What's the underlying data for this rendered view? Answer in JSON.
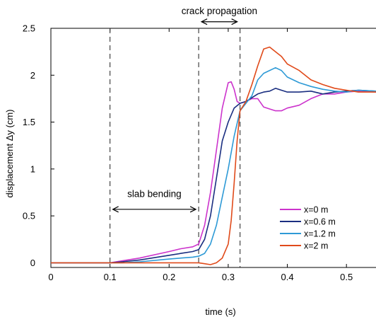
{
  "chart_data": {
    "type": "line",
    "title": "",
    "xlabel": "time (s)",
    "ylabel": "displacement Δy (cm)",
    "xlim": [
      0,
      0.55
    ],
    "ylim": [
      -0.05,
      2.5
    ],
    "xticks": [
      0,
      0.1,
      0.2,
      0.3,
      0.4,
      0.5
    ],
    "yticks": [
      0,
      0.5,
      1,
      1.5,
      2,
      2.5
    ],
    "xtick_labels": [
      "0",
      "0.1",
      "0.2",
      "0.3",
      "0.4",
      "0.5"
    ],
    "ytick_labels": [
      "0",
      "0.5",
      "1",
      "1.5",
      "2",
      "2.5"
    ],
    "grid": false,
    "legend_position": "bottom-right",
    "vertical_dashed_lines_x": [
      0.1,
      0.25,
      0.32
    ],
    "annotations": [
      {
        "text": "slab bending",
        "arrow_from_x": 0.1,
        "arrow_to_x": 0.25,
        "y": 0.57,
        "text_y": 0.7
      },
      {
        "text": "crack propagation",
        "arrow_from_x": 0.25,
        "arrow_to_x": 0.32,
        "y": 2.57,
        "text_y": 2.65
      }
    ],
    "series": [
      {
        "name": "x=0 m",
        "color": "#cc33cc",
        "x": [
          0,
          0.1,
          0.12,
          0.15,
          0.2,
          0.22,
          0.24,
          0.25,
          0.26,
          0.27,
          0.28,
          0.29,
          0.3,
          0.305,
          0.31,
          0.315,
          0.32,
          0.33,
          0.34,
          0.35,
          0.36,
          0.37,
          0.38,
          0.39,
          0.4,
          0.42,
          0.44,
          0.46,
          0.48,
          0.5,
          0.52,
          0.55
        ],
        "values": [
          0,
          0,
          0.02,
          0.05,
          0.12,
          0.15,
          0.17,
          0.2,
          0.4,
          0.75,
          1.2,
          1.65,
          1.92,
          1.93,
          1.85,
          1.72,
          1.7,
          1.72,
          1.75,
          1.75,
          1.66,
          1.64,
          1.62,
          1.62,
          1.65,
          1.68,
          1.75,
          1.8,
          1.8,
          1.82,
          1.83,
          1.82
        ]
      },
      {
        "name": "x=0.6 m",
        "color": "#1a2e80",
        "x": [
          0,
          0.1,
          0.12,
          0.15,
          0.2,
          0.22,
          0.24,
          0.25,
          0.26,
          0.27,
          0.28,
          0.29,
          0.3,
          0.31,
          0.32,
          0.33,
          0.34,
          0.35,
          0.36,
          0.37,
          0.38,
          0.39,
          0.4,
          0.42,
          0.44,
          0.46,
          0.48,
          0.5,
          0.52,
          0.55
        ],
        "values": [
          0,
          0,
          0.01,
          0.03,
          0.08,
          0.1,
          0.12,
          0.14,
          0.25,
          0.5,
          0.9,
          1.3,
          1.5,
          1.65,
          1.7,
          1.72,
          1.76,
          1.8,
          1.82,
          1.83,
          1.86,
          1.84,
          1.82,
          1.82,
          1.83,
          1.8,
          1.82,
          1.83,
          1.84,
          1.83
        ]
      },
      {
        "name": "x=1.2 m",
        "color": "#2e9ad6",
        "x": [
          0,
          0.1,
          0.12,
          0.15,
          0.2,
          0.22,
          0.24,
          0.25,
          0.26,
          0.27,
          0.28,
          0.29,
          0.3,
          0.31,
          0.32,
          0.33,
          0.34,
          0.35,
          0.36,
          0.37,
          0.38,
          0.39,
          0.4,
          0.42,
          0.44,
          0.46,
          0.48,
          0.5,
          0.52,
          0.55
        ],
        "values": [
          0,
          0,
          0,
          0.01,
          0.04,
          0.05,
          0.06,
          0.07,
          0.1,
          0.2,
          0.4,
          0.7,
          1.0,
          1.35,
          1.62,
          1.7,
          1.78,
          1.95,
          2.02,
          2.05,
          2.08,
          2.05,
          1.98,
          1.92,
          1.88,
          1.85,
          1.83,
          1.82,
          1.84,
          1.83
        ]
      },
      {
        "name": "x=2 m",
        "color": "#e04a1a",
        "x": [
          0,
          0.1,
          0.12,
          0.15,
          0.2,
          0.22,
          0.24,
          0.25,
          0.26,
          0.27,
          0.28,
          0.29,
          0.3,
          0.305,
          0.31,
          0.315,
          0.32,
          0.33,
          0.34,
          0.35,
          0.36,
          0.37,
          0.38,
          0.39,
          0.4,
          0.42,
          0.44,
          0.46,
          0.48,
          0.5,
          0.52,
          0.55
        ],
        "values": [
          0,
          0,
          0,
          0,
          0,
          0,
          0,
          0,
          -0.01,
          -0.02,
          0.0,
          0.05,
          0.2,
          0.45,
          0.85,
          1.3,
          1.62,
          1.72,
          1.9,
          2.1,
          2.28,
          2.3,
          2.25,
          2.2,
          2.12,
          2.05,
          1.95,
          1.9,
          1.86,
          1.84,
          1.82,
          1.82
        ]
      }
    ]
  }
}
